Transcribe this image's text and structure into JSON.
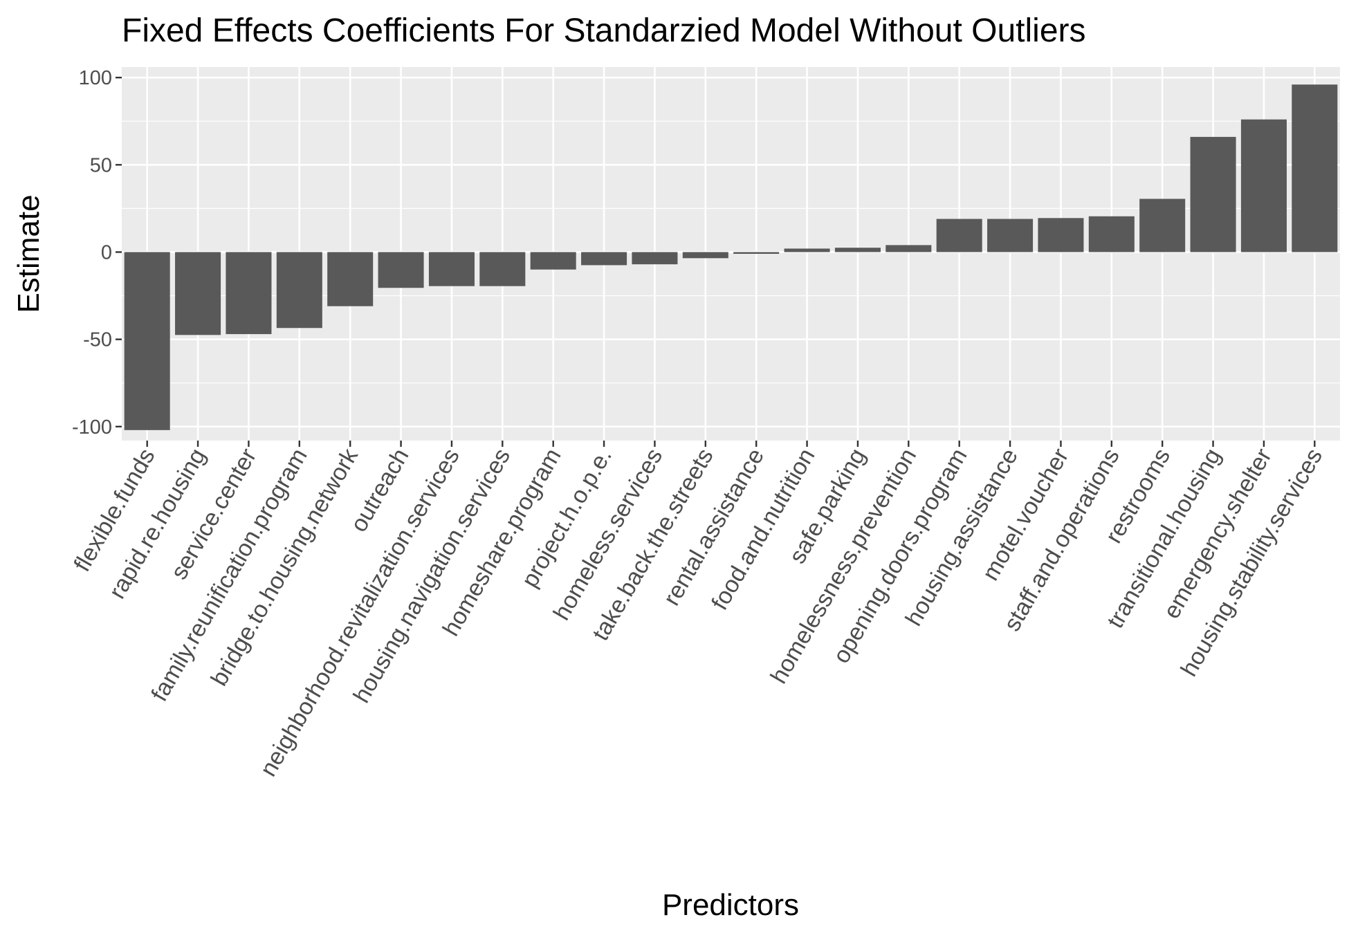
{
  "chart_data": {
    "type": "bar",
    "title": "Fixed Effects Coefficients For Standarzied Model Without Outliers",
    "xlabel": "Predictors",
    "ylabel": "Estimate",
    "ylim": [
      -108,
      106
    ],
    "yticks": [
      -100,
      -50,
      0,
      50,
      100
    ],
    "ytick_labels": [
      "-100",
      "-50",
      "0",
      "50",
      "100"
    ],
    "grid": true,
    "categories": [
      "flexible.funds",
      "rapid.re.housing",
      "service.center",
      "family.reunification.program",
      "bridge.to.housing.network",
      "outreach",
      "neighborhood.revitalization.services",
      "housing.navigation.services",
      "homeshare.program",
      "project.h.o.p.e.",
      "homeless.services",
      "take.back.the.streets",
      "rental.assistance",
      "food.and.nutrition",
      "safe.parking",
      "homelessness.prevention",
      "opening.doors.program",
      "housing.assistance",
      "motel.voucher",
      "staff.and.operations",
      "restrooms",
      "transitional.housing",
      "emergency.shelter",
      "housing.stability.services"
    ],
    "values": [
      -102,
      -47.5,
      -47,
      -43.5,
      -31,
      -20.5,
      -19.5,
      -19.5,
      -10,
      -7.5,
      -7,
      -3.5,
      -1,
      2,
      2.5,
      4,
      19,
      19,
      19.5,
      20.5,
      30.5,
      66,
      76,
      96
    ],
    "colors": {
      "bar": "#595959",
      "panel": "#ebebeb",
      "grid": "#ffffff",
      "tick": "#333333"
    }
  }
}
